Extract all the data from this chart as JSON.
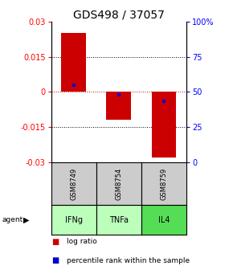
{
  "title": "GDS498 / 37057",
  "samples": [
    "GSM8749",
    "GSM8754",
    "GSM8759"
  ],
  "agents": [
    "IFNg",
    "TNFa",
    "IL4"
  ],
  "log_ratios": [
    0.025,
    -0.012,
    -0.028
  ],
  "percentile_ranks": [
    0.55,
    0.48,
    0.43
  ],
  "ylim": [
    -0.03,
    0.03
  ],
  "yticks_left": [
    -0.03,
    -0.015,
    0,
    0.015,
    0.03
  ],
  "yticks_right_labels": [
    "0",
    "25",
    "50",
    "75",
    "100%"
  ],
  "bar_color": "#cc0000",
  "percentile_color": "#0000cc",
  "agent_colors": [
    "#bbffbb",
    "#bbffbb",
    "#55dd55"
  ],
  "sample_bg": "#cccccc",
  "zero_line_color": "#cc0000",
  "background_color": "#ffffff",
  "title_fontsize": 10,
  "tick_fontsize": 7,
  "legend_fontsize": 6.5
}
